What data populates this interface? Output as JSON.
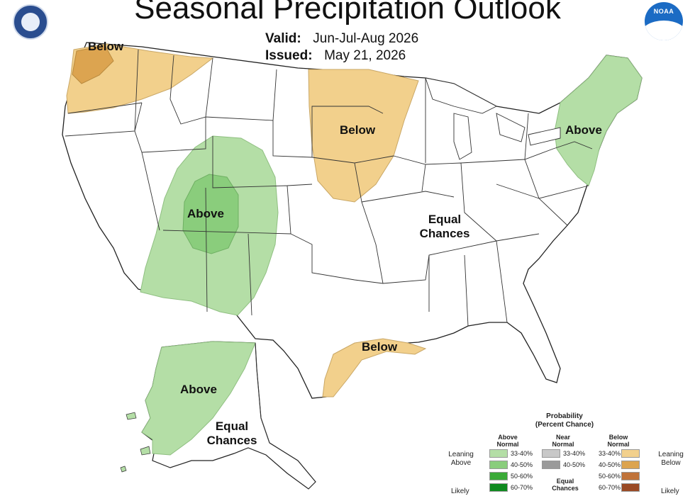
{
  "header": {
    "title": "Seasonal Precipitation Outlook",
    "valid_label": "Valid:",
    "valid_value": "Jun-Jul-Aug 2026",
    "issued_label": "Issued:",
    "issued_value": "May 21, 2026",
    "noaa_logo": "NOAA"
  },
  "regions": {
    "pacific_nw": "Below",
    "northern_plains": "Below",
    "northeast": "Above",
    "southwest": "Above",
    "central_east": [
      "Equal",
      "Chances"
    ],
    "texas_gulf": "Below",
    "alaska_above": "Above",
    "alaska_equal": [
      "Equal",
      "Chances"
    ]
  },
  "colors": {
    "above_33_40": "#b4dea6",
    "above_40_50": "#8acd7c",
    "above_50_60": "#3aaa37",
    "above_60_70": "#0f8a1f",
    "near_33_40": "#c8c8c8",
    "near_40_50": "#9a9a9a",
    "below_33_40": "#f2d08c",
    "below_40_50": "#dca450",
    "below_50_60": "#c0733a",
    "below_60_70": "#9a4a25"
  },
  "legend": {
    "title": [
      "Probability",
      "(Percent Chance)"
    ],
    "above_header": [
      "Above",
      "Normal"
    ],
    "near_header": [
      "Near",
      "Normal"
    ],
    "below_header": [
      "Below",
      "Normal"
    ],
    "leaning_above": [
      "Leaning",
      "Above"
    ],
    "leaning_below": [
      "Leaning",
      "Below"
    ],
    "likely_left": "Likely",
    "likely_right": "Likely",
    "equal_chances": [
      "Equal",
      "Chances"
    ],
    "above_rows": [
      "33-40%",
      "40-50%",
      "50-60%",
      "60-70%"
    ],
    "near_rows": [
      "33-40%",
      "40-50%"
    ],
    "below_rows": [
      "33-40%",
      "40-50%",
      "50-60%",
      "60-70%"
    ]
  }
}
